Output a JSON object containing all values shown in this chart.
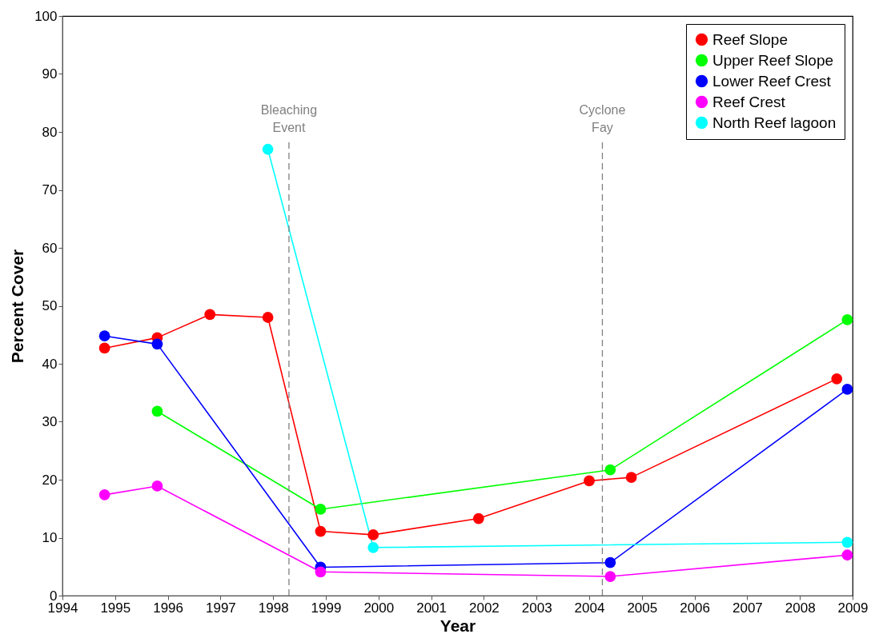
{
  "chart_data": {
    "type": "line",
    "xlabel": "Year",
    "ylabel": "Percent Cover",
    "xlim": [
      1994,
      2009
    ],
    "xticks": [
      1994,
      1995,
      1996,
      1997,
      1998,
      1999,
      2000,
      2001,
      2002,
      2003,
      2004,
      2005,
      2006,
      2007,
      2008,
      2009
    ],
    "ylim": [
      0,
      100
    ],
    "yticks": [
      0,
      10,
      20,
      30,
      40,
      50,
      60,
      70,
      80,
      90,
      100
    ],
    "grid": false,
    "legend": "top right",
    "marker": "circle",
    "line_style": "solid",
    "series": [
      {
        "name": "Reef Slope",
        "color": "#ff0000",
        "x": [
          1994.8,
          1995.8,
          1996.8,
          1997.9,
          1998.9,
          1999.9,
          2001.9,
          2004.0,
          2004.8,
          2008.7
        ],
        "values": [
          42.7,
          44.5,
          48.5,
          48.0,
          11.1,
          10.5,
          13.3,
          19.8,
          20.4,
          37.4
        ]
      },
      {
        "name": "Upper Reef Slope",
        "color": "#00ff00",
        "x": [
          1995.8,
          1998.9,
          2004.4,
          2008.9
        ],
        "values": [
          31.8,
          14.9,
          21.7,
          47.6
        ]
      },
      {
        "name": "Lower Reef Crest",
        "color": "#0000ff",
        "x": [
          1994.8,
          1995.8,
          1998.9,
          2004.4,
          2008.9
        ],
        "values": [
          44.8,
          43.4,
          4.9,
          5.7,
          35.6
        ]
      },
      {
        "name": "Reef Crest",
        "color": "#ff00ff",
        "x": [
          1994.8,
          1995.8,
          1998.9,
          2004.4,
          2008.9
        ],
        "values": [
          17.4,
          18.9,
          4.1,
          3.3,
          7.0
        ]
      },
      {
        "name": "North Reef lagoon",
        "color": "#00ffff",
        "x": [
          1997.9,
          1999.9,
          2008.9
        ],
        "values": [
          77.0,
          8.3,
          9.2
        ]
      }
    ],
    "ref_lines": [
      {
        "axis": "x",
        "value": 1998.3,
        "label": "Bleaching\nEvent",
        "color": "#808080",
        "line_style": "dashed"
      },
      {
        "axis": "x",
        "value": 2004.25,
        "label": "Cyclone\nFay",
        "color": "#808080",
        "line_style": "dashed"
      }
    ]
  }
}
